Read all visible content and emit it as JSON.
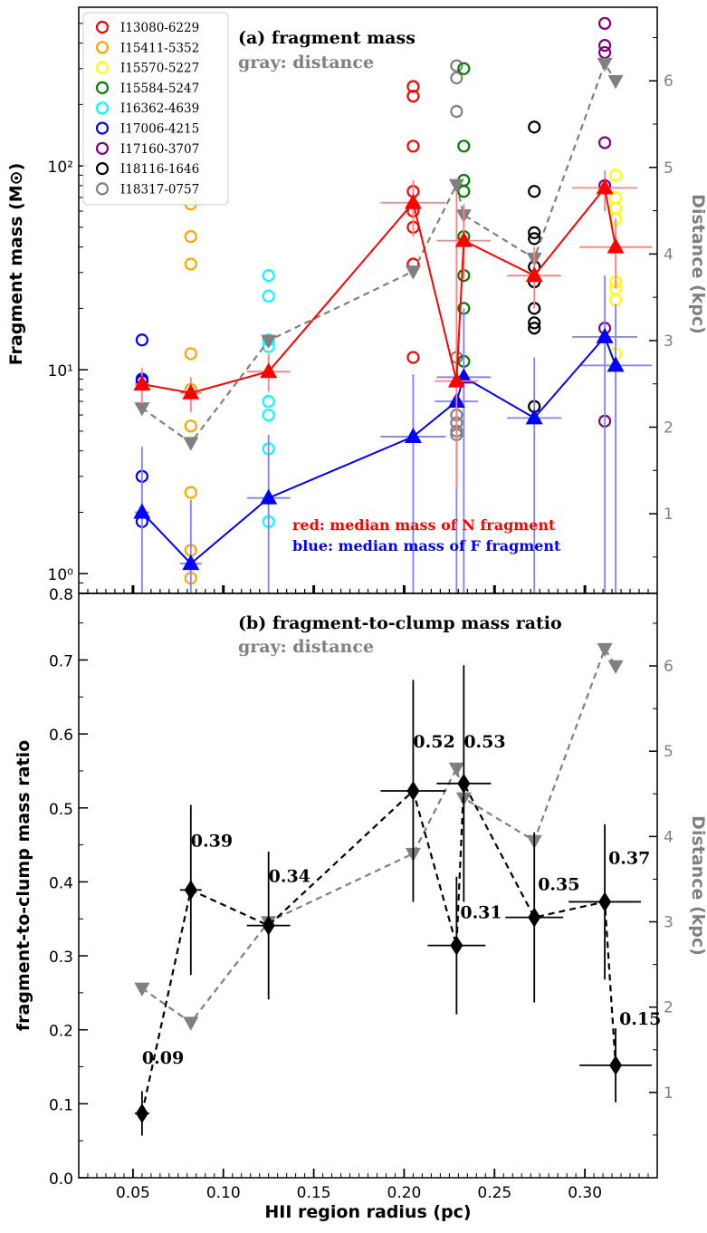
{
  "chart_data": [
    {
      "id": "panel_a",
      "type": "scatter",
      "title": "(a) fragment mass",
      "subtitle": "gray: distance",
      "ylabel": "Fragment mass (M⊙)",
      "y2label": "Distance (kpc)",
      "yscale": "log",
      "ylim": [
        0.8,
        600
      ],
      "y2lim": [
        0.08,
        6.85
      ],
      "xlim": [
        0.02,
        0.34
      ],
      "yticks": [
        {
          "v": 1,
          "label": "10⁰"
        },
        {
          "v": 10,
          "label": "10¹"
        },
        {
          "v": 100,
          "label": "10²"
        },
        {
          "v": 0.8,
          "label": "0.8"
        }
      ],
      "y2ticks": [
        1,
        2,
        3,
        4,
        5,
        6
      ],
      "legend_position": "top-left",
      "legend": [
        {
          "name": "I13080-6229",
          "color": "#ff0000"
        },
        {
          "name": "I15411-5352",
          "color": "#ffa500"
        },
        {
          "name": "I15570-5227",
          "color": "#ffff00"
        },
        {
          "name": "I15584-5247",
          "color": "#008000"
        },
        {
          "name": "I16362-4639",
          "color": "#00ffff"
        },
        {
          "name": "I17006-4215",
          "color": "#0000ff"
        },
        {
          "name": "I17160-3707",
          "color": "#800080"
        },
        {
          "name": "I18116-1646",
          "color": "#000000"
        },
        {
          "name": "I18317-0757",
          "color": "#808080"
        }
      ],
      "notes": [
        {
          "text": "red: median mass of N fragment",
          "color": "#ff0000"
        },
        {
          "text": "blue: median mass of F fragment",
          "color": "#0000ff"
        }
      ],
      "fragments": [
        {
          "source": "I17006-4215",
          "color": "#0000ff",
          "x": 0.055,
          "masses": [
            14,
            9,
            8.8,
            3,
            1.8
          ]
        },
        {
          "source": "I15411-5352",
          "color": "#ffa500",
          "x": 0.082,
          "masses": [
            65,
            45,
            33,
            12,
            8,
            5.3,
            2.5,
            1.3,
            0.95
          ]
        },
        {
          "source": "I16362-4639",
          "color": "#00ffff",
          "x": 0.125,
          "masses": [
            29,
            23,
            14,
            13,
            7,
            6,
            4.1,
            1.8
          ]
        },
        {
          "source": "I13080-6229",
          "color": "#ff0000",
          "x": 0.205,
          "masses": [
            245,
            220,
            125,
            75,
            60,
            50,
            33,
            11.5
          ]
        },
        {
          "source": "I18317-0757",
          "color": "#808080",
          "x": 0.229,
          "masses": [
            310,
            270,
            185,
            11.5,
            6,
            5.5,
            5,
            4.8
          ]
        },
        {
          "source": "I15584-5247",
          "color": "#008000",
          "x": 0.233,
          "masses": [
            300,
            125,
            85,
            75,
            45,
            29,
            20,
            11
          ]
        },
        {
          "source": "I18116-1646",
          "color": "#000000",
          "x": 0.272,
          "masses": [
            155,
            75,
            47,
            44,
            32,
            27,
            20,
            17,
            16,
            6.6
          ]
        },
        {
          "source": "I17160-3707",
          "color": "#800080",
          "x": 0.311,
          "masses": [
            500,
            390,
            360,
            130,
            80,
            16,
            5.6
          ]
        },
        {
          "source": "I15570-5227",
          "color": "#ffff00",
          "x": 0.317,
          "masses": [
            90,
            70,
            62,
            55,
            27,
            25,
            22,
            12
          ]
        }
      ],
      "series": [
        {
          "name": "N median",
          "color": "#ff0000",
          "marker": "triangle-up",
          "points": [
            {
              "x": 0.055,
              "y": 8.5,
              "xerr": 0.004,
              "yerr": [
                6.8,
                10.2
              ]
            },
            {
              "x": 0.082,
              "y": 7.7,
              "xerr": 0.006,
              "yerr": [
                6.2,
                9.2
              ]
            },
            {
              "x": 0.125,
              "y": 9.8,
              "xerr": 0.012,
              "yerr": [
                7.8,
                12
              ]
            },
            {
              "x": 0.205,
              "y": 66,
              "xerr": 0.018,
              "yerr": [
                45,
                85
              ]
            },
            {
              "x": 0.229,
              "y": 8.8,
              "xerr": 0.012,
              "yerr": [
                2.6,
                75
              ]
            },
            {
              "x": 0.233,
              "y": 43,
              "xerr": 0.015,
              "yerr": [
                28,
                65
              ]
            },
            {
              "x": 0.272,
              "y": 29,
              "xerr": 0.015,
              "yerr": [
                20,
                40
              ]
            },
            {
              "x": 0.311,
              "y": 78,
              "xerr": 0.018,
              "yerr": [
                60,
                95
              ]
            },
            {
              "x": 0.317,
              "y": 40,
              "xerr": 0.02,
              "yerr": [
                25,
                55
              ]
            }
          ]
        },
        {
          "name": "F median",
          "color": "#0000ff",
          "marker": "triangle-up",
          "points": [
            {
              "x": 0.055,
              "y": 2.0,
              "xerr": 0.004,
              "yerr": [
                0.8,
                4.2
              ]
            },
            {
              "x": 0.082,
              "y": 1.12,
              "xerr": 0.006,
              "yerr": [
                0.8,
                2.3
              ]
            },
            {
              "x": 0.125,
              "y": 2.35,
              "xerr": 0.012,
              "yerr": [
                0.8,
                4.8
              ]
            },
            {
              "x": 0.205,
              "y": 4.7,
              "xerr": 0.018,
              "yerr": [
                0.8,
                9.5
              ]
            },
            {
              "x": 0.229,
              "y": 7.0,
              "xerr": 0.012,
              "yerr": [
                0.8,
                14
              ]
            },
            {
              "x": 0.233,
              "y": 9.2,
              "xerr": 0.015,
              "yerr": [
                0.8,
                20
              ]
            },
            {
              "x": 0.272,
              "y": 5.8,
              "xerr": 0.015,
              "yerr": [
                0.8,
                11.5
              ]
            },
            {
              "x": 0.311,
              "y": 14.5,
              "xerr": 0.018,
              "yerr": [
                0.8,
                29
              ]
            },
            {
              "x": 0.317,
              "y": 10.5,
              "xerr": 0.02,
              "yerr": [
                0.8,
                21
              ]
            }
          ]
        },
        {
          "name": "distance",
          "color": "#808080",
          "marker": "triangle-down",
          "axis": "y2",
          "points": [
            {
              "x": 0.055,
              "y": 2.22
            },
            {
              "x": 0.082,
              "y": 1.82
            },
            {
              "x": 0.125,
              "y": 3.0
            },
            {
              "x": 0.205,
              "y": 3.8
            },
            {
              "x": 0.229,
              "y": 4.8
            },
            {
              "x": 0.233,
              "y": 4.45
            },
            {
              "x": 0.272,
              "y": 3.95
            },
            {
              "x": 0.311,
              "y": 6.2
            },
            {
              "x": 0.317,
              "y": 6.0
            }
          ]
        }
      ]
    },
    {
      "id": "panel_b",
      "type": "scatter",
      "title": "(b) fragment-to-clump mass ratio",
      "subtitle": "gray: distance",
      "xlabel": "HII region radius (pc)",
      "ylabel": "fragment-to-clump mass ratio",
      "y2label": "Distance (kpc)",
      "xlim": [
        0.02,
        0.34
      ],
      "ylim": [
        0.0,
        0.79
      ],
      "y2lim": [
        0.0,
        6.85
      ],
      "xticks": [
        0.05,
        0.1,
        0.15,
        0.2,
        0.25,
        0.3
      ],
      "xtick_labels": [
        "0.05",
        "0.10",
        "0.15",
        "0.20",
        "0.25",
        "0.30"
      ],
      "yticks": [
        0.0,
        0.1,
        0.2,
        0.3,
        0.4,
        0.5,
        0.6,
        0.7
      ],
      "ytick_labels": [
        "0.0",
        "0.1",
        "0.2",
        "0.3",
        "0.4",
        "0.5",
        "0.6",
        "0.7"
      ],
      "y2ticks": [
        1,
        2,
        3,
        4,
        5,
        6
      ],
      "series": [
        {
          "name": "ratio",
          "color": "#000000",
          "marker": "diamond",
          "points": [
            {
              "x": 0.055,
              "y": 0.087,
              "xerr": 0.004,
              "yerr": 0.03,
              "label": "0.09"
            },
            {
              "x": 0.082,
              "y": 0.389,
              "xerr": 0.006,
              "yerr": 0.115,
              "label": "0.39"
            },
            {
              "x": 0.125,
              "y": 0.341,
              "xerr": 0.012,
              "yerr": 0.1,
              "label": "0.34"
            },
            {
              "x": 0.205,
              "y": 0.523,
              "xerr": 0.018,
              "yerr": 0.15,
              "label": "0.52"
            },
            {
              "x": 0.229,
              "y": 0.314,
              "xerr": 0.016,
              "yerr": 0.093,
              "label": "0.31"
            },
            {
              "x": 0.233,
              "y": 0.533,
              "xerr": 0.015,
              "yerr": 0.16,
              "label": "0.53"
            },
            {
              "x": 0.272,
              "y": 0.352,
              "xerr": 0.016,
              "yerr": 0.115,
              "label": "0.35"
            },
            {
              "x": 0.311,
              "y": 0.373,
              "xerr": 0.02,
              "yerr": 0.105,
              "label": "0.37"
            },
            {
              "x": 0.317,
              "y": 0.152,
              "xerr": 0.02,
              "yerr": 0.05,
              "label": "0.15"
            }
          ]
        },
        {
          "name": "distance",
          "color": "#808080",
          "marker": "triangle-down",
          "axis": "y2",
          "points": [
            {
              "x": 0.055,
              "y": 2.22
            },
            {
              "x": 0.082,
              "y": 1.82
            },
            {
              "x": 0.125,
              "y": 3.0
            },
            {
              "x": 0.205,
              "y": 3.8
            },
            {
              "x": 0.229,
              "y": 4.8
            },
            {
              "x": 0.233,
              "y": 4.45
            },
            {
              "x": 0.272,
              "y": 3.95
            },
            {
              "x": 0.311,
              "y": 6.2
            },
            {
              "x": 0.317,
              "y": 6.0
            }
          ]
        }
      ]
    }
  ]
}
